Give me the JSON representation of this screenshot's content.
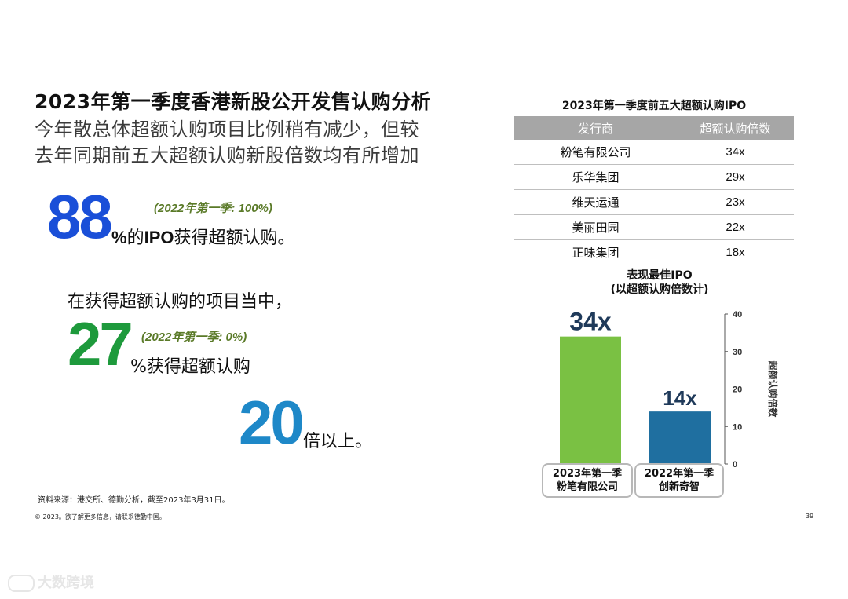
{
  "header": {
    "title": "2023年第一季度香港新股公开发售认购分析",
    "subtitle_line1": "今年散总体超额认购项目比例稍有减少，但较",
    "subtitle_line2": "去年同期前五大超额认购新股倍数均有所增加"
  },
  "stats": {
    "stat1": {
      "number": "88",
      "note": "(2022年第一季: 100%)",
      "text_pct": "%",
      "text_a": "的",
      "text_ipo": "IPO",
      "text_b": "获得超额认购。",
      "color": "#1a4fd8"
    },
    "intro": "在获得超额认购的项目当中，",
    "stat2": {
      "number": "27",
      "note": "(2022年第一季: 0%)",
      "text": "%获得超额认购",
      "color": "#1e9a3c"
    },
    "stat3": {
      "number": "20",
      "text": "倍以上。",
      "color": "#1e88c8"
    }
  },
  "table": {
    "title": "2023年第一季度前五大超额认购IPO",
    "headers": [
      "发行商",
      "超额认购倍数"
    ],
    "rows": [
      [
        "粉笔有限公司",
        "34x"
      ],
      [
        "乐华集团",
        "29x"
      ],
      [
        "维天运通",
        "23x"
      ],
      [
        "美丽田园",
        "22x"
      ],
      [
        "正味集团",
        "18x"
      ]
    ]
  },
  "chart_data": {
    "type": "bar",
    "title": "表现最佳IPO",
    "subtitle": "(以超额认购倍数计)",
    "ylabel": "超额认购倍数",
    "ylim": [
      0,
      40
    ],
    "yticks": [
      0,
      10,
      20,
      30,
      40
    ],
    "categories": [
      [
        "2023年第一季",
        "粉笔有限公司"
      ],
      [
        "2022年第一季",
        "创新奇智"
      ]
    ],
    "values": [
      34,
      14
    ],
    "value_labels": [
      "34x",
      "14x"
    ],
    "colors": [
      "#7ac143",
      "#1f6fa0"
    ]
  },
  "footer": {
    "source": "资料来源：港交所、德勤分析，截至2023年3月31日。",
    "copyright": "© 2023。欲了解更多信息，请联系德勤中国。",
    "page_number": "39",
    "watermark": "大数跨境"
  }
}
